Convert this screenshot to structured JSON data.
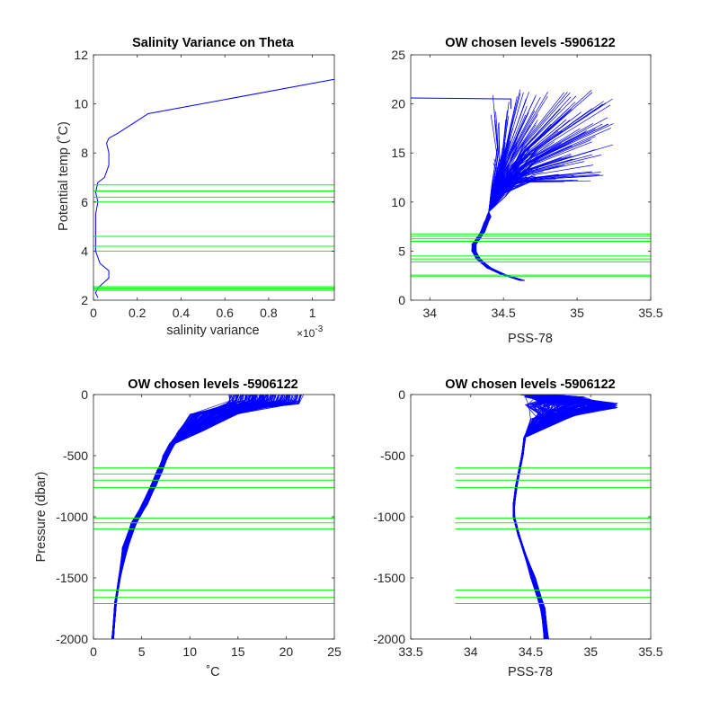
{
  "figure": {
    "background": "#ffffff",
    "axis_color": "#262626"
  },
  "chart_data": [
    {
      "type": "line",
      "title": "Salinity Variance on Theta",
      "xlabel": "salinity variance",
      "ylabel": "Potential temp (˚C)",
      "x_exponent_label": "×10",
      "x_exponent_power": "-3",
      "xlim": [
        0,
        1.1
      ],
      "ylim": [
        2,
        12
      ],
      "xticks": [
        0,
        0.2,
        0.4,
        0.6,
        0.8,
        1
      ],
      "xtick_labels": [
        "0",
        "0.2",
        "0.4",
        "0.6",
        "0.8",
        "1"
      ],
      "yticks": [
        2,
        4,
        6,
        8,
        10,
        12
      ],
      "ytick_labels": [
        "2",
        "4",
        "6",
        "8",
        "10",
        "12"
      ],
      "series": [
        {
          "color": "#0000ff",
          "points": [
            [
              0.02,
              2.1
            ],
            [
              0.01,
              2.3
            ],
            [
              0.02,
              2.5
            ],
            [
              0.07,
              2.9
            ],
            [
              0.07,
              3.2
            ],
            [
              0.03,
              3.5
            ],
            [
              0.01,
              4.0
            ],
            [
              0.01,
              4.6
            ],
            [
              0.01,
              5.0
            ],
            [
              0.01,
              5.5
            ],
            [
              0.02,
              6.0
            ],
            [
              0.01,
              6.4
            ],
            [
              0.02,
              6.8
            ],
            [
              0.05,
              7.0
            ],
            [
              0.07,
              7.5
            ],
            [
              0.07,
              8.0
            ],
            [
              0.06,
              8.4
            ],
            [
              0.07,
              8.6
            ],
            [
              0.11,
              8.8
            ],
            [
              0.25,
              9.6
            ],
            [
              1.1,
              11.0
            ]
          ]
        }
      ],
      "level_lines": {
        "color": "#00ff00",
        "y": [
          2.4,
          2.45,
          2.5,
          2.55,
          4.0,
          4.2,
          4.6,
          6.0,
          6.2,
          6.45,
          6.7
        ]
      }
    },
    {
      "type": "line",
      "title": "OW chosen levels -5906122",
      "xlabel": "PSS-78",
      "ylabel": "",
      "xlim": [
        33.87,
        35.5
      ],
      "ylim": [
        0,
        25
      ],
      "xticks": [
        34,
        34.5,
        35,
        35.5
      ],
      "xtick_labels": [
        "34",
        "34.5",
        "35",
        "35.5"
      ],
      "yticks": [
        0,
        5,
        10,
        15,
        20,
        25
      ],
      "ytick_labels": [
        "0",
        "5",
        "10",
        "15",
        "20",
        "25"
      ],
      "series": [
        {
          "color": "#0000ff",
          "profile_count": 170,
          "deep_points": [
            [
              34.63,
              2.0
            ],
            [
              34.5,
              2.6
            ],
            [
              34.4,
              3.3
            ],
            [
              34.33,
              4.2
            ],
            [
              34.3,
              5.0
            ],
            [
              34.3,
              5.7
            ],
            [
              34.33,
              6.3
            ],
            [
              34.36,
              7.0
            ],
            [
              34.38,
              7.8
            ],
            [
              34.4,
              8.5
            ],
            [
              34.4,
              9.0
            ]
          ]
        },
        {
          "color": "#0000ff",
          "points": [
            [
              33.87,
              20.6
            ],
            [
              34.55,
              20.5
            ],
            [
              34.55,
              19.5
            ]
          ]
        }
      ],
      "level_lines": {
        "color": "#00ff00",
        "y": [
          2.4,
          2.55,
          3.9,
          4.2,
          4.5,
          6.0,
          6.25,
          6.5,
          6.75
        ]
      }
    },
    {
      "type": "line",
      "title": "OW chosen levels -5906122",
      "xlabel": "˚C",
      "ylabel": "Pressure (dbar)",
      "xlim": [
        0,
        25
      ],
      "ylim": [
        -2000,
        0
      ],
      "xticks": [
        0,
        5,
        10,
        15,
        20,
        25
      ],
      "xtick_labels": [
        "0",
        "5",
        "10",
        "15",
        "20",
        "25"
      ],
      "yticks": [
        -2000,
        -1500,
        -1000,
        -500,
        0
      ],
      "ytick_labels": [
        "-2000",
        "-1500",
        "-1000",
        "-500",
        "0"
      ],
      "series": [
        {
          "color": "#0000ff",
          "profile_count": 170,
          "deep_points": [
            [
              2.0,
              -2000
            ],
            [
              2.3,
              -1700
            ],
            [
              2.7,
              -1500
            ],
            [
              3.3,
              -1250
            ],
            [
              4.2,
              -1050
            ],
            [
              5.3,
              -900
            ],
            [
              6.2,
              -750
            ],
            [
              6.9,
              -620
            ],
            [
              7.5,
              -500
            ],
            [
              8.2,
              -400
            ]
          ]
        }
      ],
      "level_lines": {
        "color": "#00ff00",
        "x_start": 0,
        "y": [
          -600,
          -650,
          -700,
          -760,
          -1010,
          -1050,
          -1100,
          -1600,
          -1660,
          -1710
        ]
      }
    },
    {
      "type": "line",
      "title": "OW chosen levels -5906122",
      "xlabel": "PSS-78",
      "ylabel": "",
      "xlim": [
        33.5,
        35.5
      ],
      "ylim": [
        -2000,
        0
      ],
      "xticks": [
        33.5,
        34,
        34.5,
        35,
        35.5
      ],
      "xtick_labels": [
        "33.5",
        "34",
        "34.5",
        "35",
        "35.5"
      ],
      "yticks": [
        -2000,
        -1500,
        -1000,
        -500,
        0
      ],
      "ytick_labels": [
        "-2000",
        "-1500",
        "-1000",
        "-500",
        "0"
      ],
      "series": [
        {
          "color": "#0000ff",
          "profile_count": 170,
          "deep_points": [
            [
              34.63,
              -2000
            ],
            [
              34.6,
              -1750
            ],
            [
              34.52,
              -1500
            ],
            [
              34.45,
              -1300
            ],
            [
              34.4,
              -1150
            ],
            [
              34.36,
              -1000
            ],
            [
              34.36,
              -900
            ],
            [
              34.38,
              -750
            ],
            [
              34.41,
              -600
            ],
            [
              34.43,
              -500
            ],
            [
              34.45,
              -350
            ]
          ]
        }
      ],
      "level_lines": {
        "color": "#00ff00",
        "x_start": 33.87,
        "y": [
          -600,
          -650,
          -700,
          -760,
          -1010,
          -1050,
          -1100,
          -1600,
          -1660,
          -1710
        ]
      }
    }
  ]
}
